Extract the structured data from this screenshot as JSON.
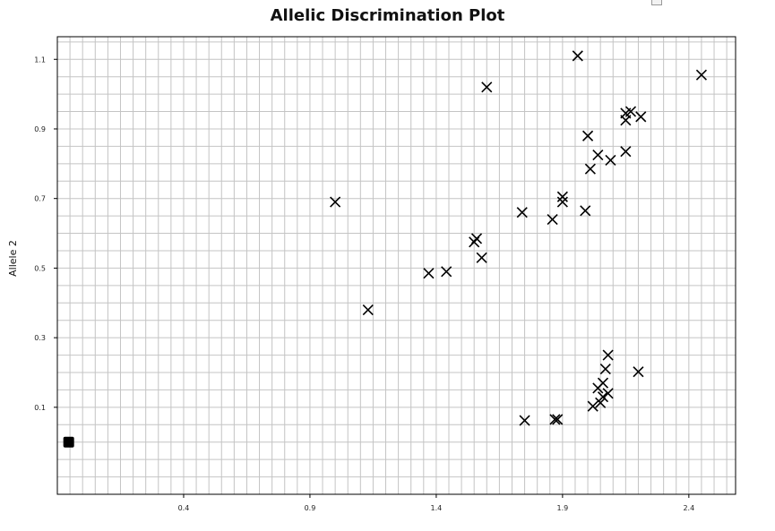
{
  "chart_data": {
    "type": "scatter",
    "title": "Allelic Discrimination Plot",
    "xlabel": "",
    "ylabel": "Allele 2",
    "xlim": [
      -0.1,
      2.585
    ],
    "ylim": [
      -0.15,
      1.165
    ],
    "x_ticks": [
      0.4,
      0.9,
      1.4,
      1.9,
      2.4
    ],
    "x_tick_labels": [
      "0.4",
      "0.9",
      "1.4",
      "1.9",
      "2.4"
    ],
    "y_ticks": [
      0.1,
      0.3,
      0.5,
      0.7,
      0.9,
      1.1
    ],
    "y_tick_labels": [
      "0.1",
      "0.3",
      "0.5",
      "0.7",
      "0.9",
      "1.1"
    ],
    "grid": true,
    "series": [
      {
        "marker": "x",
        "color": "#000000",
        "points": [
          [
            1.0,
            0.69
          ],
          [
            1.13,
            0.38
          ],
          [
            1.37,
            0.485
          ],
          [
            1.44,
            0.49
          ],
          [
            1.55,
            0.575
          ],
          [
            1.56,
            0.585
          ],
          [
            1.58,
            0.53
          ],
          [
            1.6,
            1.02
          ],
          [
            1.74,
            0.66
          ],
          [
            1.75,
            0.062
          ],
          [
            1.86,
            0.64
          ],
          [
            1.87,
            0.065
          ],
          [
            1.88,
            0.065
          ],
          [
            1.9,
            0.705
          ],
          [
            1.9,
            0.69
          ],
          [
            1.96,
            1.11
          ],
          [
            1.99,
            0.665
          ],
          [
            2.0,
            0.88
          ],
          [
            2.01,
            0.785
          ],
          [
            2.02,
            0.103
          ],
          [
            2.04,
            0.825
          ],
          [
            2.04,
            0.155
          ],
          [
            2.05,
            0.113
          ],
          [
            2.06,
            0.17
          ],
          [
            2.06,
            0.13
          ],
          [
            2.07,
            0.21
          ],
          [
            2.08,
            0.25
          ],
          [
            2.08,
            0.14
          ],
          [
            2.09,
            0.81
          ],
          [
            2.15,
            0.835
          ],
          [
            2.15,
            0.945
          ],
          [
            2.15,
            0.925
          ],
          [
            2.17,
            0.95
          ],
          [
            2.2,
            0.202
          ],
          [
            2.21,
            0.935
          ],
          [
            2.45,
            1.055
          ]
        ]
      },
      {
        "marker": "square",
        "color": "#000000",
        "points": [
          [
            -0.055,
            -0.0
          ]
        ]
      }
    ]
  }
}
